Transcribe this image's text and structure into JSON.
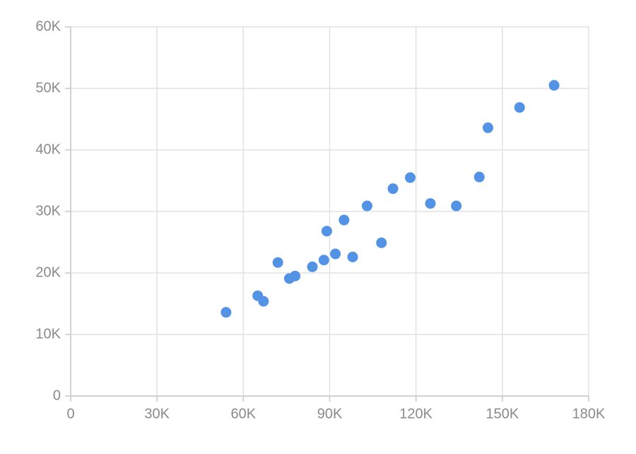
{
  "chart_data": {
    "type": "scatter",
    "x": [
      54000,
      65000,
      67000,
      72000,
      76000,
      78000,
      84000,
      88000,
      89000,
      92000,
      95000,
      98000,
      103000,
      108000,
      112000,
      118000,
      125000,
      134000,
      142000,
      145000,
      156000,
      168000
    ],
    "values": [
      13600,
      16300,
      15400,
      21700,
      19100,
      19500,
      21000,
      22100,
      26800,
      23100,
      28600,
      22600,
      30900,
      24900,
      33700,
      35500,
      31300,
      30900,
      35600,
      43600,
      46900,
      50500
    ],
    "color": "#5393e5",
    "xlim": [
      0,
      180000
    ],
    "xticks": [
      0,
      {
        "value": 30000,
        "label": "30K"
      },
      {
        "value": 60000,
        "label": "60K"
      },
      {
        "value": 90000,
        "label": "90K"
      },
      {
        "value": 120000,
        "label": "120K"
      },
      {
        "value": 150000,
        "label": "150K"
      },
      {
        "value": 180000,
        "label": "180K"
      }
    ],
    "ylim": [
      0,
      60000
    ],
    "yticks": [
      0,
      {
        "value": 10000,
        "label": "10K"
      },
      {
        "value": 20000,
        "label": "20K"
      },
      {
        "value": 30000,
        "label": "30K"
      },
      {
        "value": 40000,
        "label": "40K"
      },
      {
        "value": 50000,
        "label": "50K"
      },
      {
        "value": 60000,
        "label": "60K"
      }
    ],
    "grid": true
  }
}
